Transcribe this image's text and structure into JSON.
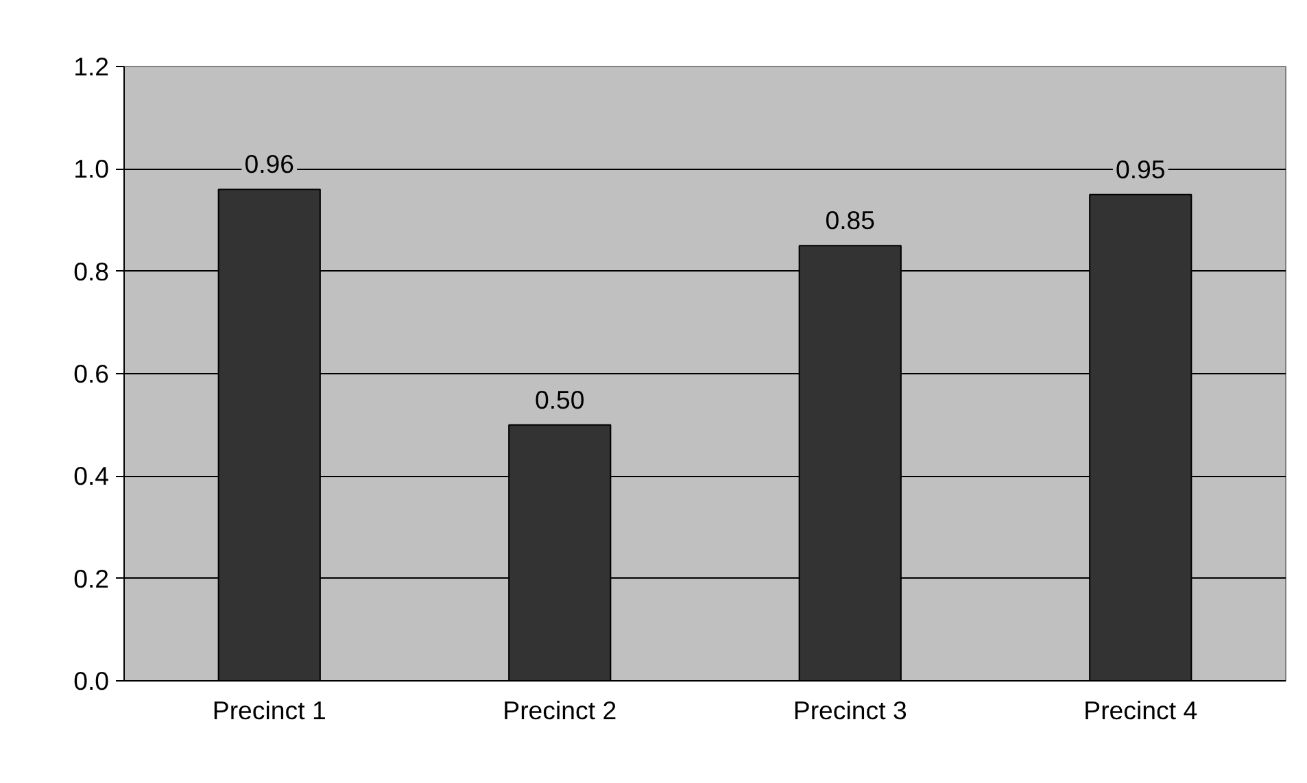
{
  "chart_data": {
    "type": "bar",
    "categories": [
      "Precinct 1",
      "Precinct 2",
      "Precinct 3",
      "Precinct 4"
    ],
    "values": [
      0.96,
      0.5,
      0.85,
      0.95
    ],
    "value_labels": [
      "0.96",
      "0.50",
      "0.85",
      "0.95"
    ],
    "color": "#333333",
    "ylim": [
      0,
      1.2
    ],
    "yticks": [
      {
        "value": 0,
        "label": "0.0"
      },
      0.2,
      0.4,
      0.6,
      0.8,
      {
        "value": 1.0,
        "label": "1.0"
      },
      1.2
    ],
    "grid": "y"
  }
}
